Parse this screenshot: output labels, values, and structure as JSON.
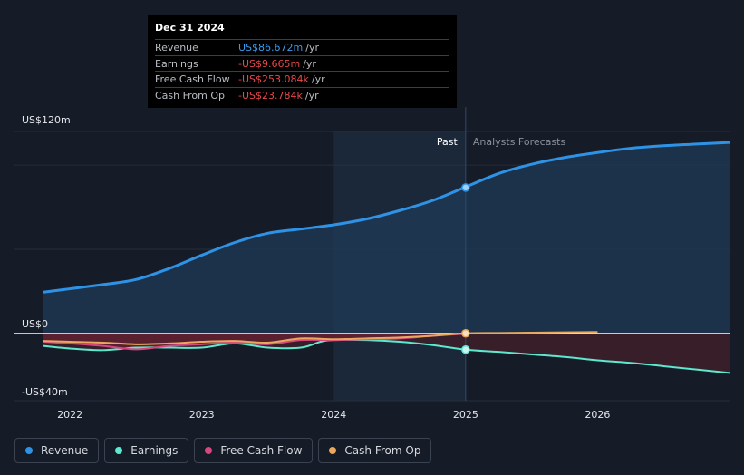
{
  "tooltip": {
    "date": "Dec 31 2024",
    "rows": [
      {
        "label": "Revenue",
        "value": "US$86.672m",
        "unit": "/yr",
        "color": "#3b9be8"
      },
      {
        "label": "Earnings",
        "value": "-US$9.665m",
        "unit": "/yr",
        "color": "#e8484a"
      },
      {
        "label": "Free Cash Flow",
        "value": "-US$253.084k",
        "unit": "/yr",
        "color": "#e8484a"
      },
      {
        "label": "Cash From Op",
        "value": "-US$23.784k",
        "unit": "/yr",
        "color": "#e8484a"
      }
    ]
  },
  "legend": [
    {
      "label": "Revenue",
      "color": "#2e93e6"
    },
    {
      "label": "Earnings",
      "color": "#5ee8cf"
    },
    {
      "label": "Free Cash Flow",
      "color": "#d5487f"
    },
    {
      "label": "Cash From Op",
      "color": "#e8a95e"
    }
  ],
  "chart_data": {
    "type": "area",
    "y_tick_labels": [
      "US$120m",
      "US$0",
      "-US$40m"
    ],
    "ylim": [
      -40,
      120
    ],
    "x_tick_labels": [
      "2022",
      "2023",
      "2024",
      "2025",
      "2026"
    ],
    "xlim": [
      2021.8,
      2027.0
    ],
    "divider_x": 2025.0,
    "past_label": "Past",
    "forecast_label": "Analysts Forecasts",
    "series": [
      {
        "name": "Revenue",
        "color": "#2e93e6",
        "x": [
          2021.8,
          2022.0,
          2022.25,
          2022.5,
          2022.75,
          2023.0,
          2023.25,
          2023.5,
          2023.75,
          2024.0,
          2024.25,
          2024.5,
          2024.75,
          2025.0,
          2025.25,
          2025.5,
          2025.75,
          2026.0,
          2026.25,
          2026.5,
          2026.75,
          2027.0
        ],
        "y": [
          24.5,
          26.5,
          29,
          32,
          38.5,
          46.5,
          54,
          59.5,
          62,
          64.5,
          68,
          73,
          79,
          87,
          95,
          100.5,
          104.5,
          107.5,
          110,
          111.5,
          112.5,
          113.5
        ]
      },
      {
        "name": "Earnings",
        "color": "#5ee8cf",
        "x": [
          2021.8,
          2022.0,
          2022.25,
          2022.5,
          2022.75,
          2023.0,
          2023.25,
          2023.5,
          2023.75,
          2023.9,
          2024.0,
          2024.25,
          2024.5,
          2024.75,
          2025.0,
          2025.25,
          2025.5,
          2025.75,
          2026.0,
          2026.25,
          2026.5,
          2026.75,
          2027.0
        ],
        "y": [
          -7.5,
          -9,
          -10,
          -8.5,
          -8.5,
          -8.5,
          -6,
          -8.5,
          -8.5,
          -5,
          -4,
          -4,
          -5,
          -7,
          -9.7,
          -11,
          -12.5,
          -14,
          -16,
          -17.5,
          -19.5,
          -21.5,
          -23.5
        ]
      },
      {
        "name": "Free Cash Flow",
        "color": "#d5487f",
        "x": [
          2021.8,
          2022.0,
          2022.25,
          2022.5,
          2022.75,
          2023.0,
          2023.25,
          2023.5,
          2023.75,
          2024.0,
          2024.25,
          2024.5,
          2024.75,
          2025.0
        ],
        "y": [
          -5,
          -6,
          -7.5,
          -9.5,
          -7.5,
          -6.5,
          -5.5,
          -6.5,
          -4,
          -4,
          -3.5,
          -3,
          -1.5,
          -0.25
        ]
      },
      {
        "name": "Cash From Op",
        "color": "#e8a95e",
        "x": [
          2021.8,
          2022.0,
          2022.25,
          2022.5,
          2022.75,
          2023.0,
          2023.25,
          2023.5,
          2023.75,
          2024.0,
          2024.25,
          2024.5,
          2024.75,
          2025.0,
          2025.25,
          2025.5,
          2025.75,
          2026.0
        ],
        "y": [
          -4.5,
          -5,
          -5.5,
          -6.5,
          -6,
          -5,
          -4.5,
          -5.5,
          -3,
          -3.5,
          -3,
          -2.5,
          -1.5,
          -0.02,
          0.2,
          0.4,
          0.6,
          0.8
        ]
      }
    ],
    "highlight": {
      "x": 2025.0,
      "values": [
        86.672,
        -9.665,
        -0.253,
        -0.024
      ]
    }
  }
}
